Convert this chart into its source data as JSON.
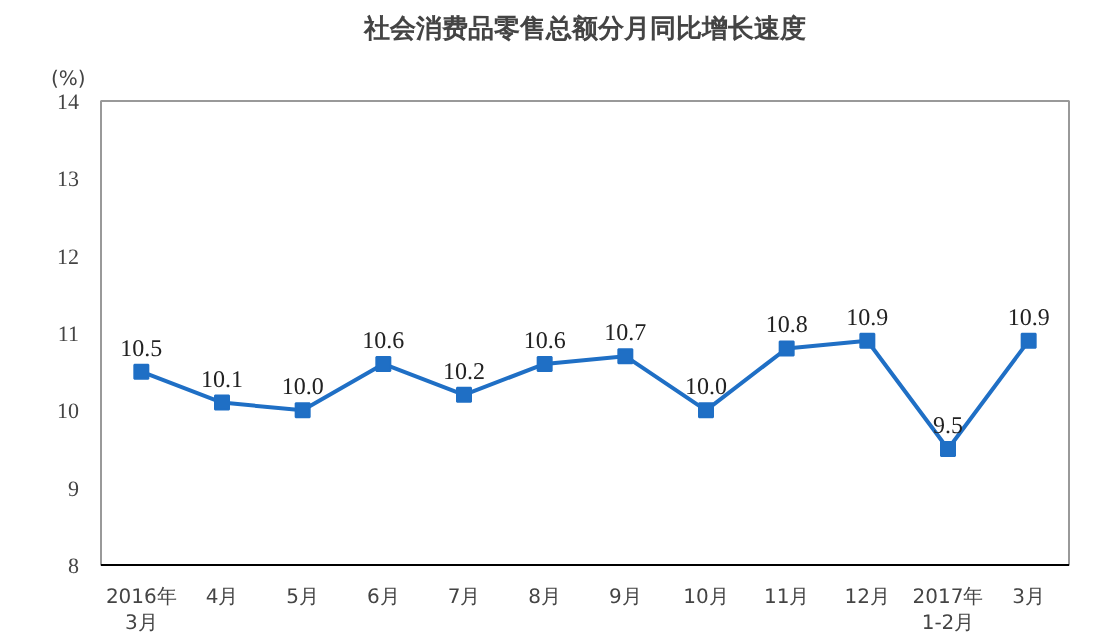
{
  "chart_data": {
    "type": "line",
    "title": "社会消费品零售总额分月同比增长速度",
    "ylabel": "(%)",
    "categories": [
      "2016年\n3月",
      "4月",
      "5月",
      "6月",
      "7月",
      "8月",
      "9月",
      "10月",
      "11月",
      "12月",
      "2017年\n1-2月",
      "3月"
    ],
    "series": [
      {
        "color": "#1f6fc5",
        "values": [
          10.5,
          10.1,
          10.0,
          10.6,
          10.2,
          10.6,
          10.7,
          10.0,
          10.8,
          10.9,
          9.5,
          10.9
        ],
        "value_labels": [
          "10.5",
          "10.1",
          "10.0",
          "10.6",
          "10.2",
          "10.6",
          "10.7",
          "10.0",
          "10.8",
          "10.9",
          "9.5",
          "10.9"
        ]
      }
    ],
    "ylim": [
      8,
      14
    ],
    "yticks": [
      8,
      9,
      10,
      11,
      12,
      13,
      14
    ],
    "marker": "square",
    "line_style": "solid"
  }
}
